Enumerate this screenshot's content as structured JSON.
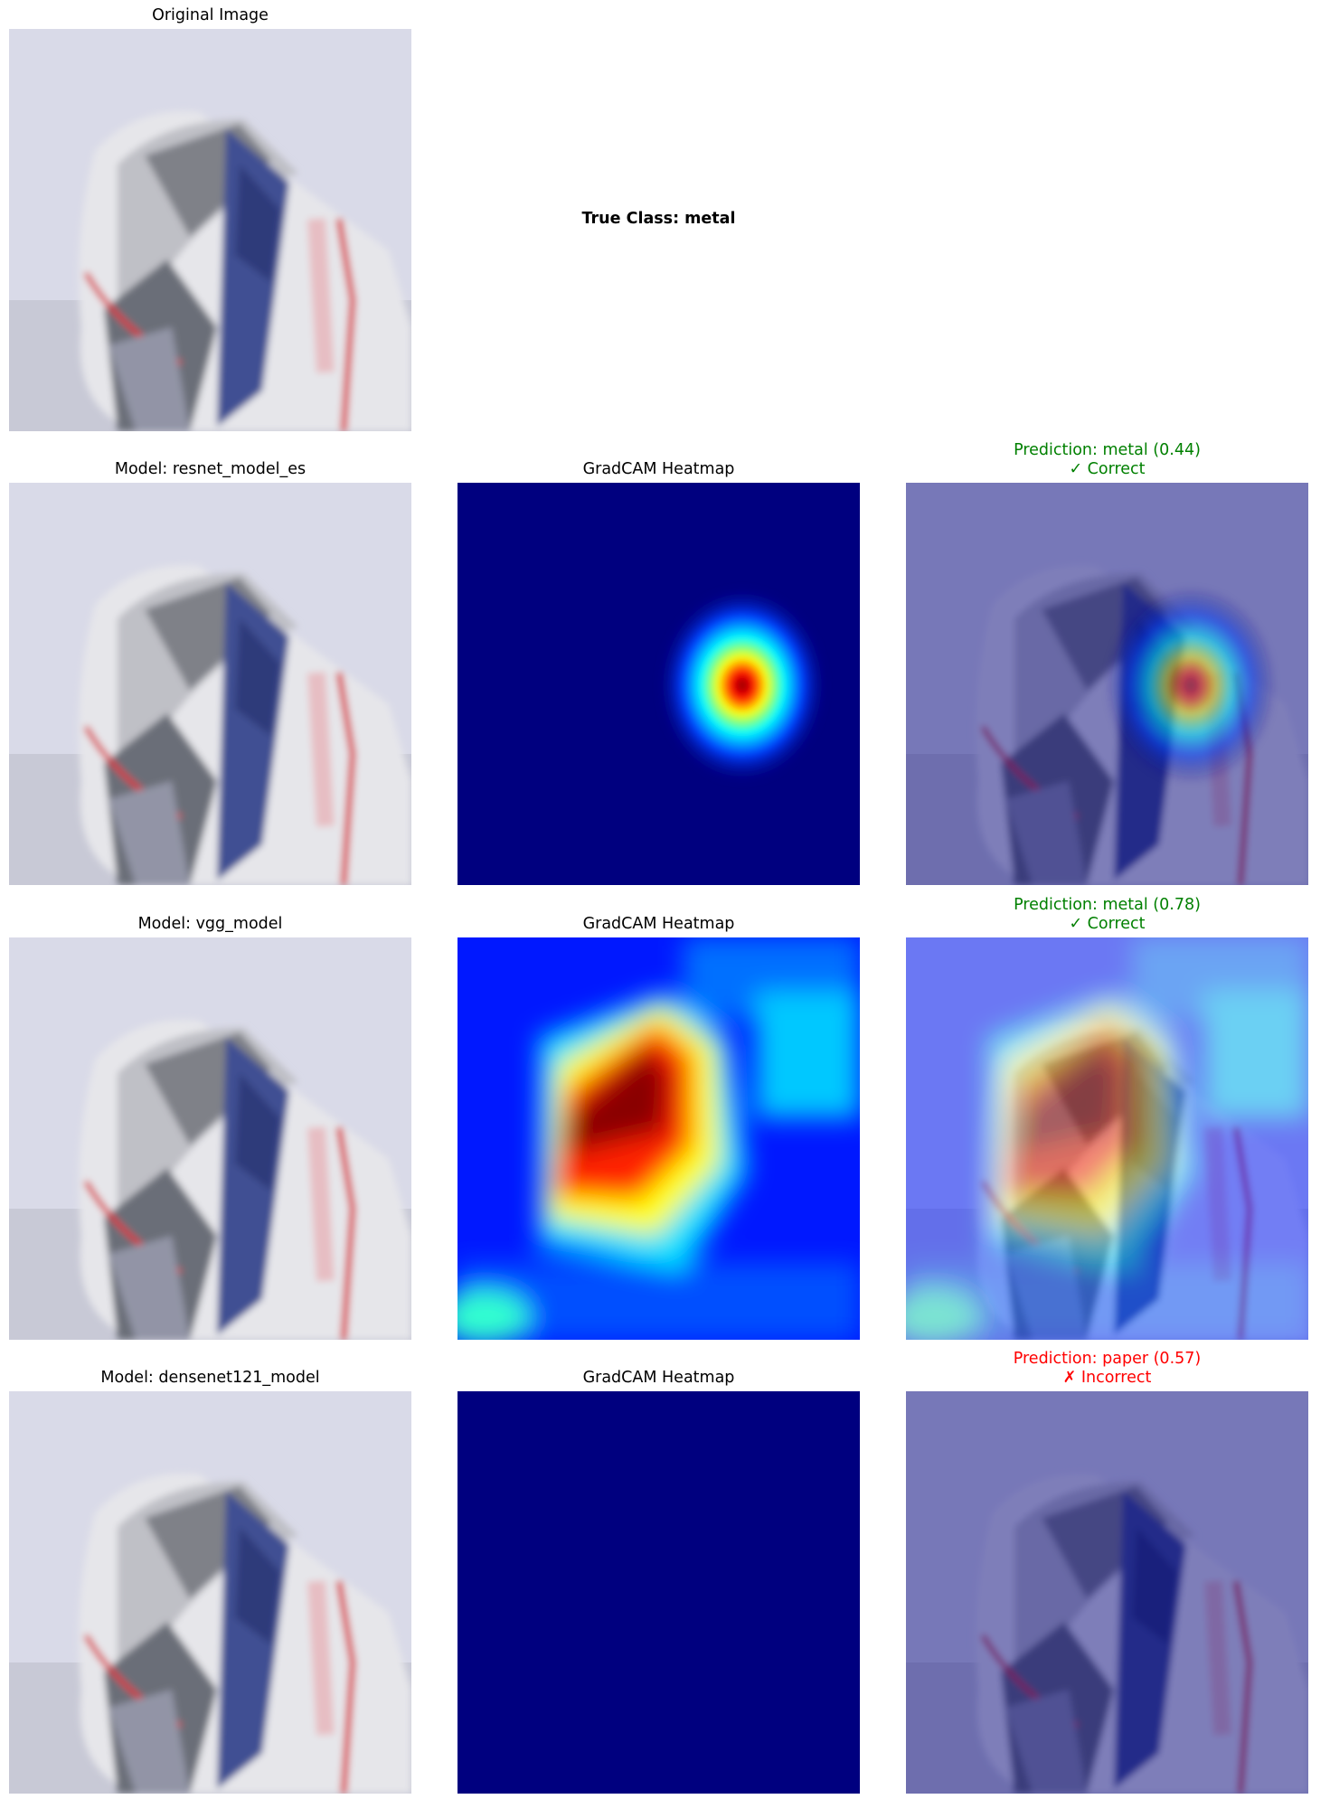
{
  "original": {
    "title": "Original Image"
  },
  "true_class": "True Class: metal",
  "heatmap_title": "GradCAM Heatmap",
  "rows": [
    {
      "model": "Model: resnet_model_es",
      "prediction": "Prediction: metal (0.44)",
      "result": "✓ Correct",
      "status_color": "#008000"
    },
    {
      "model": "Model: vgg_model",
      "prediction": "Prediction: metal (0.78)",
      "result": "✓ Correct",
      "status_color": "#008000"
    },
    {
      "model": "Model: densenet121_model",
      "prediction": "Prediction: paper (0.57)",
      "result": "✗ Incorrect",
      "status_color": "#ff0000"
    }
  ],
  "colors": {
    "correct": "#008000",
    "incorrect": "#ff0000",
    "jet_low": "#00007f"
  }
}
